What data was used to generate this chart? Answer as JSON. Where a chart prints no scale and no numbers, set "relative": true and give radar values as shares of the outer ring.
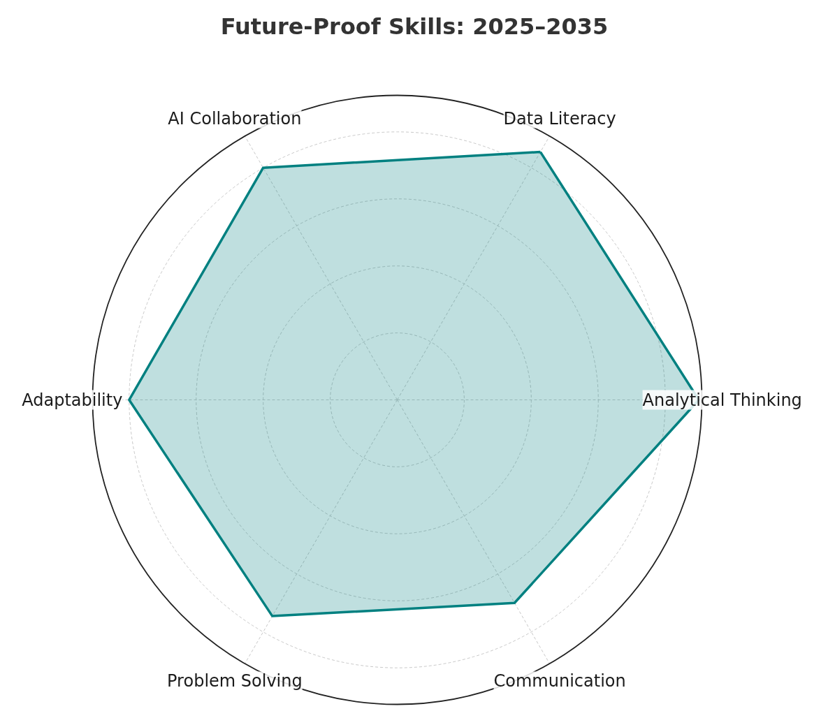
{
  "chart_data": {
    "type": "radar",
    "title": "Future-Proof Skills: 2025–2035",
    "categories": [
      "Data Literacy",
      "Analytical Thinking",
      "Communication",
      "Problem Solving",
      "Adaptability",
      "AI Collaboration"
    ],
    "relative": true,
    "grid": true,
    "line_style": "solid",
    "series": [
      {
        "color": "#008080",
        "values": [
          0.94,
          0.99,
          0.77,
          0.82,
          0.88,
          0.88
        ]
      }
    ]
  }
}
